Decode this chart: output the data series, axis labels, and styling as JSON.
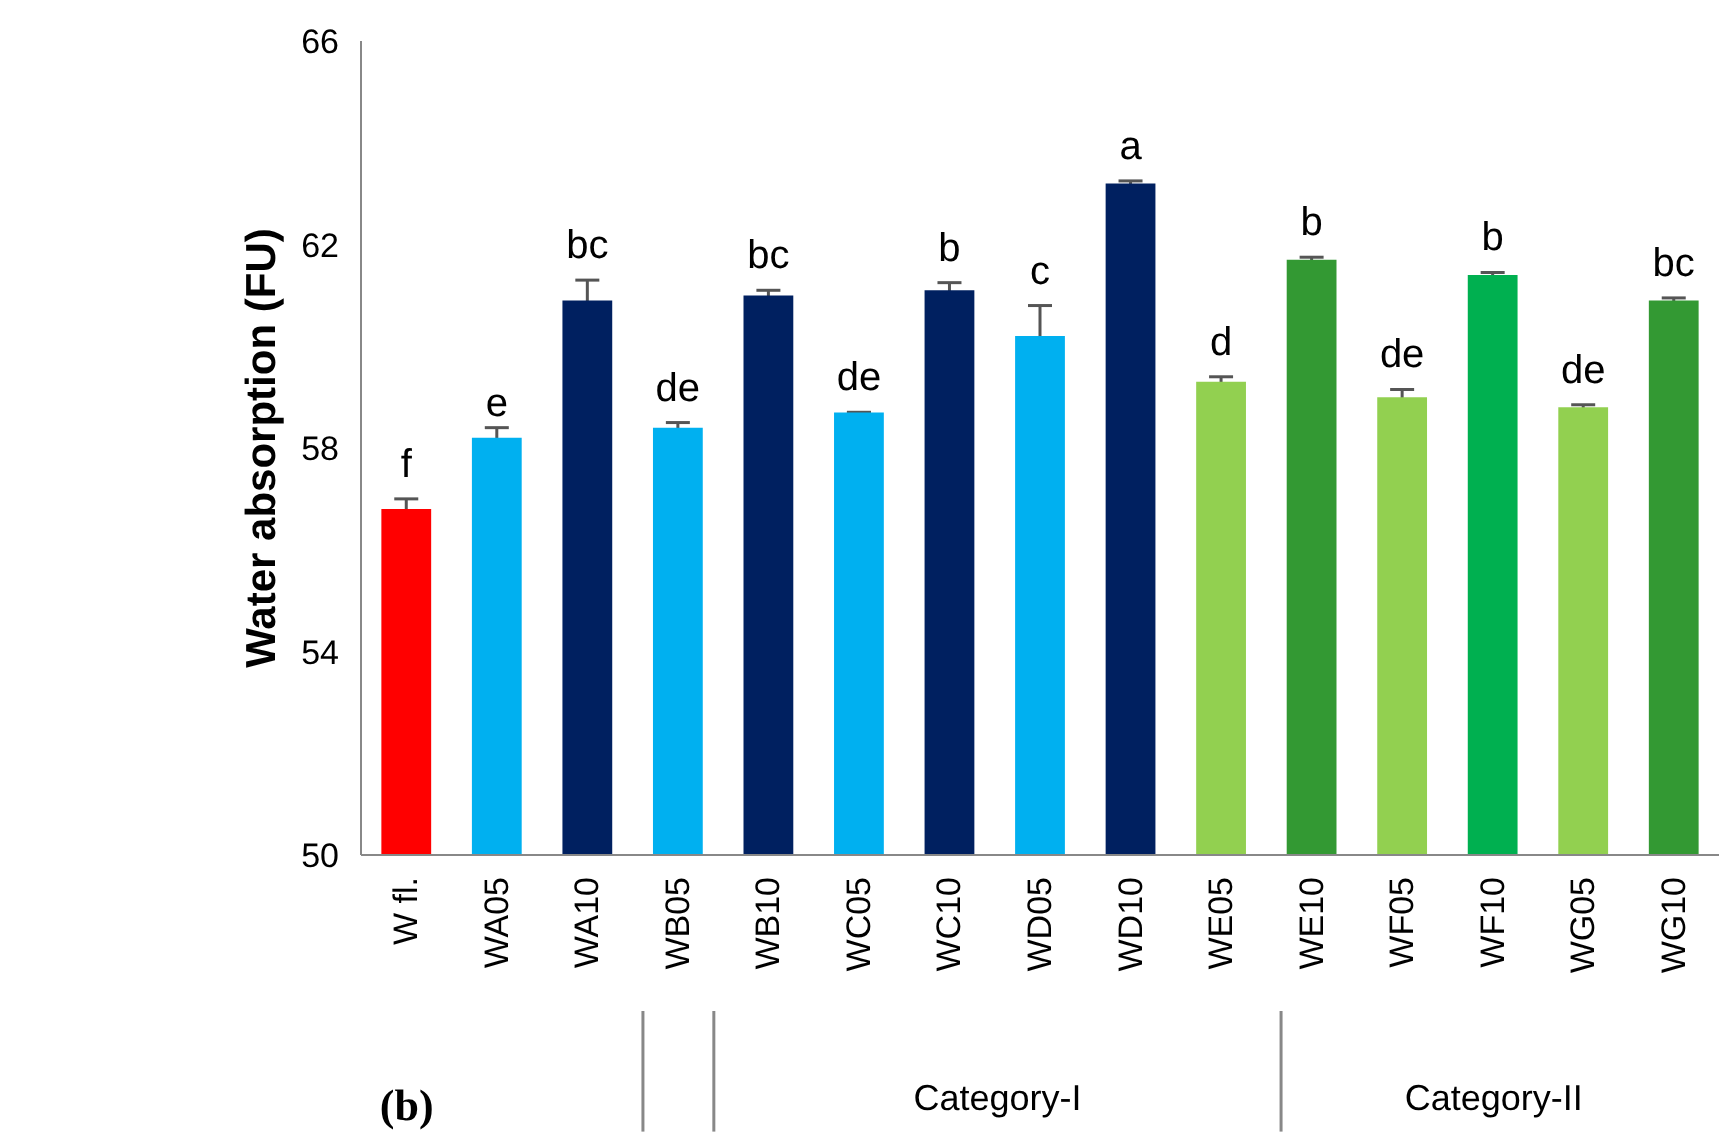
{
  "chart_data": {
    "type": "bar",
    "ylabel": "Water absorption (FU)",
    "categories": [
      "W fl.",
      "WA05",
      "WA10",
      "WB05",
      "WB10",
      "WC05",
      "WC10",
      "WD05",
      "WD10",
      "WE05",
      "WE10",
      "WF05",
      "WF10",
      "WG05",
      "WG10"
    ],
    "values": [
      56.8,
      58.2,
      60.9,
      58.4,
      61.0,
      58.7,
      61.1,
      60.2,
      63.2,
      59.3,
      61.7,
      59.0,
      61.4,
      58.8,
      60.9
    ],
    "errors": [
      0.2,
      0.2,
      0.4,
      0.1,
      0.1,
      0,
      0.15,
      0.6,
      0.05,
      0.1,
      0.05,
      0.15,
      0.05,
      0.05,
      0.05
    ],
    "colors": [
      "#ff0000",
      "#00b0f0",
      "#002060",
      "#00b0f0",
      "#002060",
      "#00b0f0",
      "#002060",
      "#00b0f0",
      "#002060",
      "#92d050",
      "#339933",
      "#92d050",
      "#00b050",
      "#92d050",
      "#339933"
    ],
    "value_labels": [
      "f",
      "e",
      "bc",
      "de",
      "bc",
      "de",
      "b",
      "c",
      "a",
      "d",
      "b",
      "de",
      "b",
      "de",
      "bc"
    ],
    "ylim": [
      50,
      66
    ],
    "yticks": [
      50,
      54,
      58,
      62,
      66
    ],
    "grid": false,
    "annotations": [
      "Category-I",
      "Category-II",
      "(b)"
    ]
  }
}
